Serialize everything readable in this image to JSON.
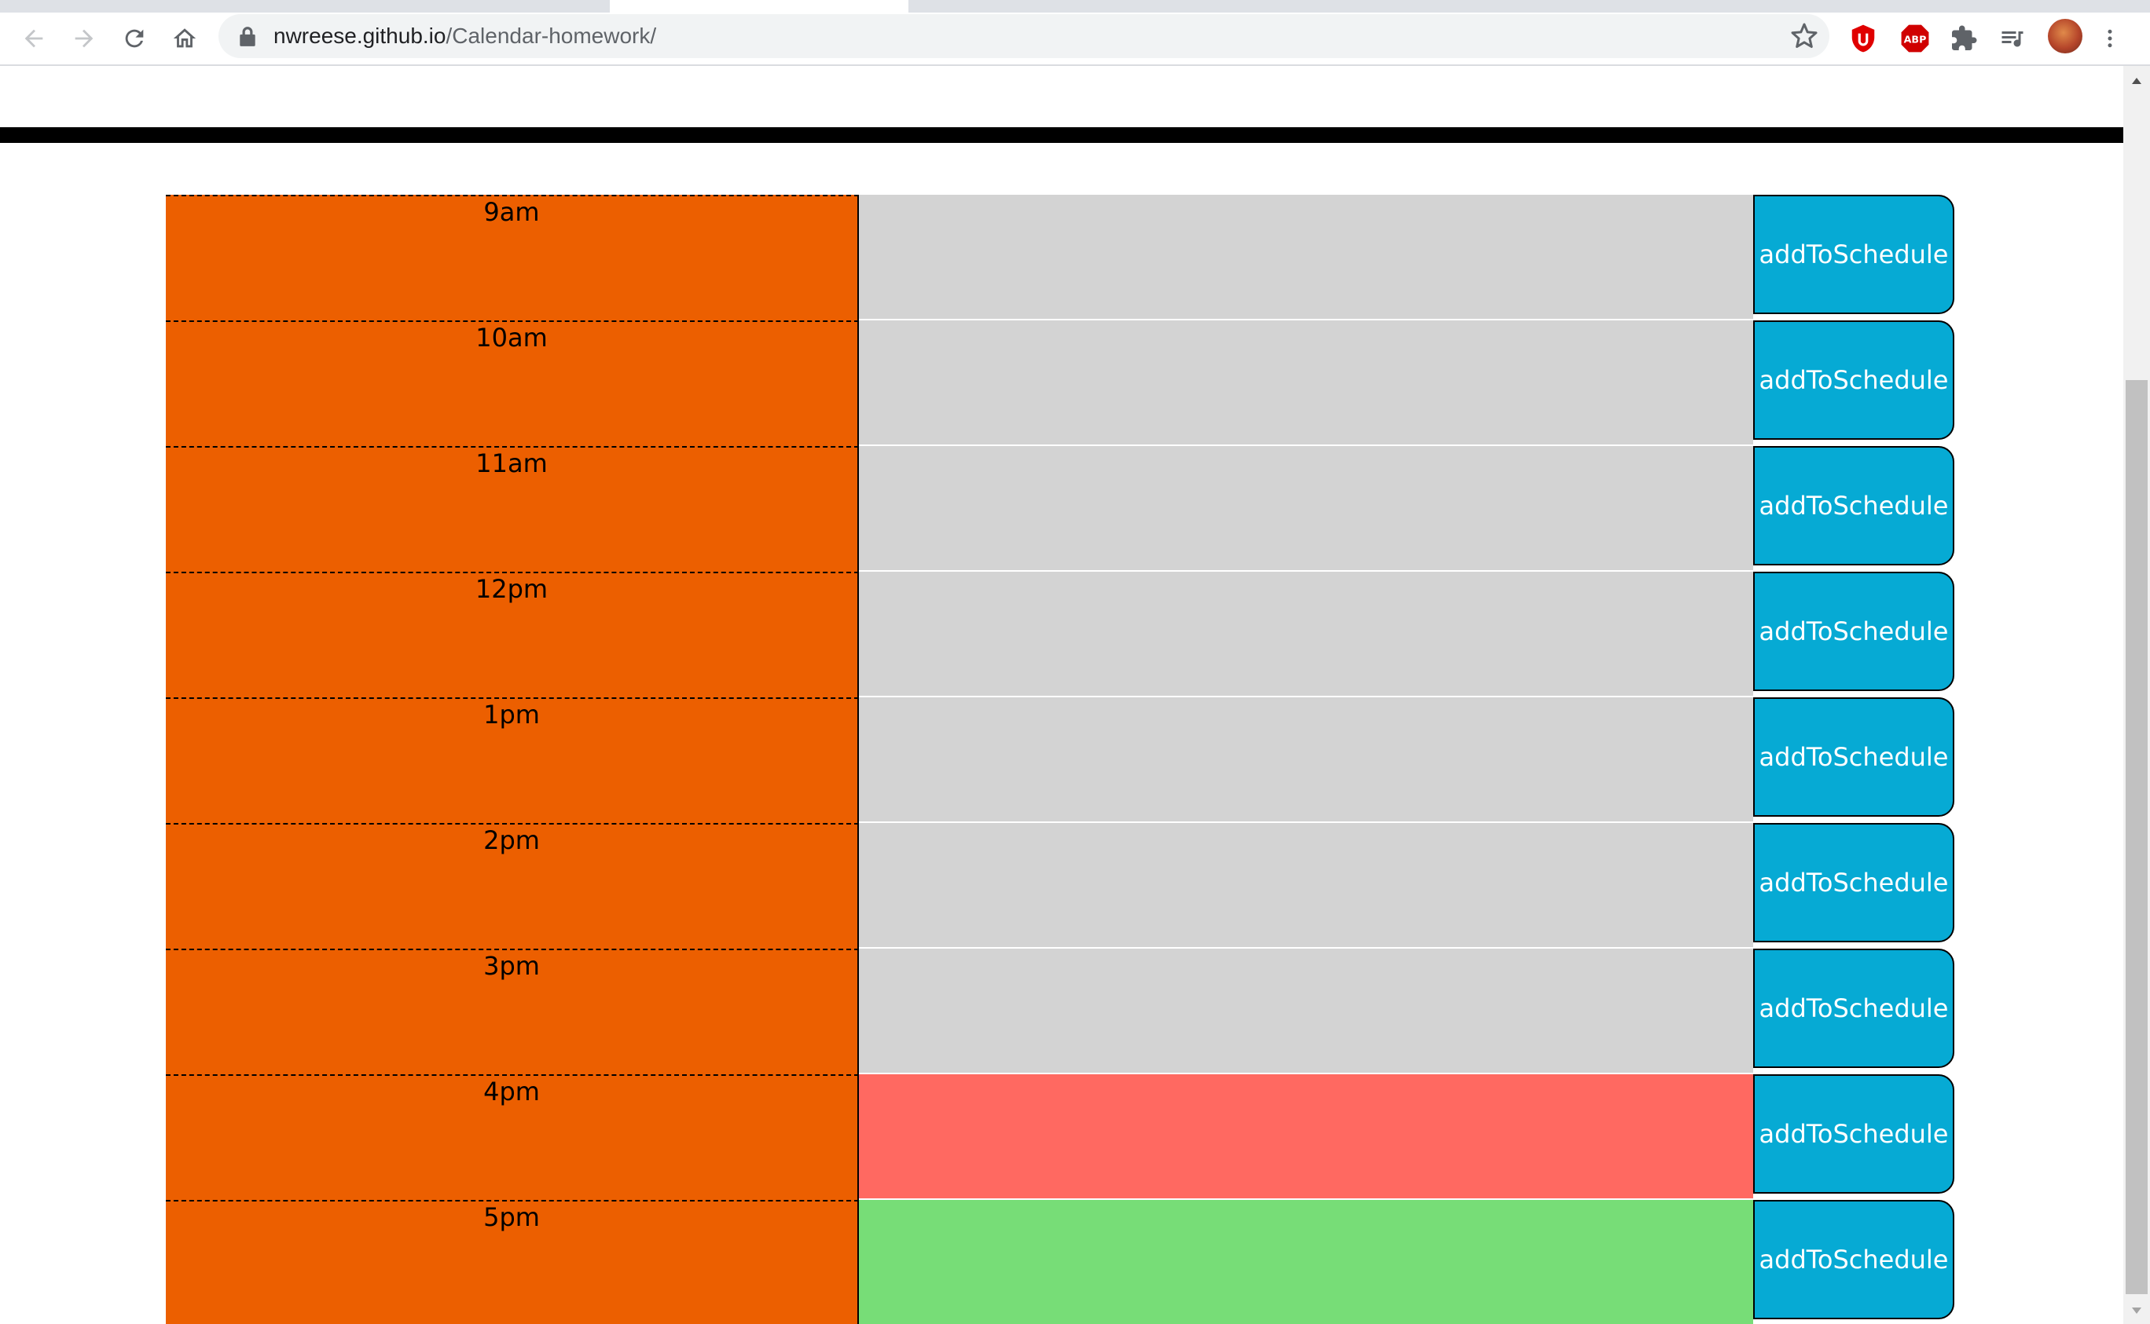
{
  "browser": {
    "url_host": "nwreese.github.io",
    "url_path": "/Calendar-homework/",
    "icons": [
      "back-arrow-icon",
      "forward-arrow-icon",
      "reload-icon",
      "home-icon",
      "lock-icon",
      "star-icon",
      "ublock-icon",
      "adblock-plus-icon",
      "extensions-puzzle-icon",
      "media-queue-icon",
      "profile-avatar",
      "kebab-menu-icon"
    ],
    "abp_label": "ABP"
  },
  "schedule": {
    "save_label": "addToSchedule",
    "rows": [
      {
        "hour": "9am",
        "status": "past"
      },
      {
        "hour": "10am",
        "status": "past"
      },
      {
        "hour": "11am",
        "status": "past"
      },
      {
        "hour": "12pm",
        "status": "past"
      },
      {
        "hour": "1pm",
        "status": "past"
      },
      {
        "hour": "2pm",
        "status": "past"
      },
      {
        "hour": "3pm",
        "status": "past"
      },
      {
        "hour": "4pm",
        "status": "present"
      },
      {
        "hour": "5pm",
        "status": "future"
      }
    ]
  },
  "colors": {
    "hour_block": "#ec5f00",
    "past": "#d3d3d3",
    "present": "#ff6961",
    "future": "#77dd77",
    "save_button": "#06aad4",
    "header_bar": "#000000"
  }
}
